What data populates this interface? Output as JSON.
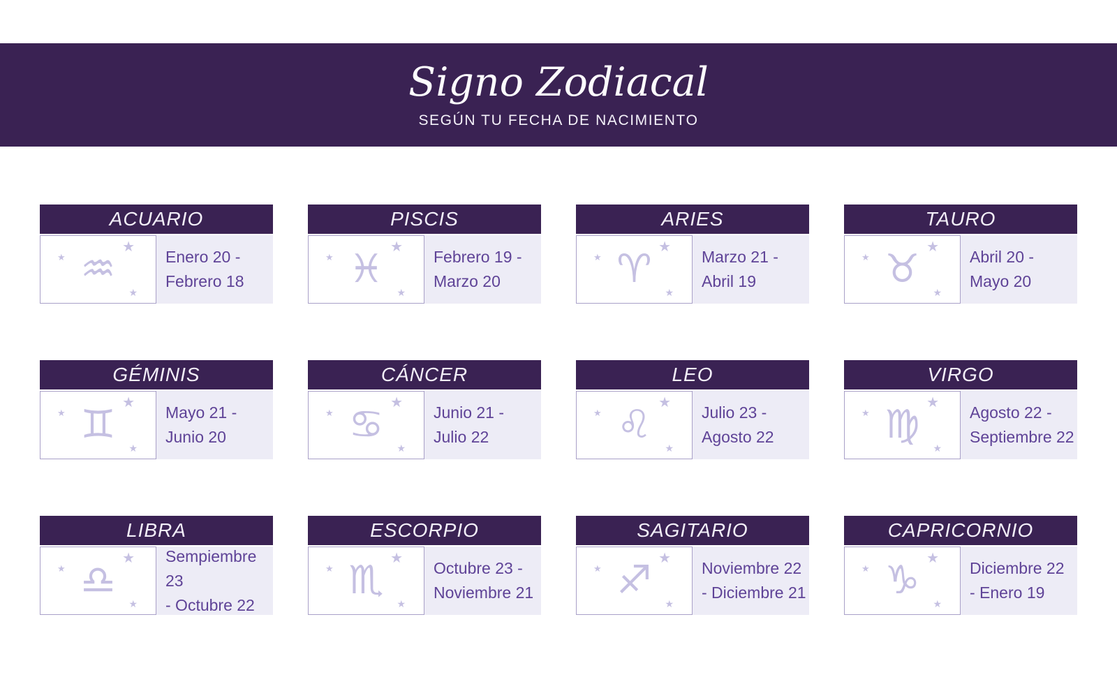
{
  "header": {
    "title": "Signo Zodiacal",
    "subtitle": "SEGÚN TU FECHA DE NACIMIENTO"
  },
  "decor": {
    "star_glyph": "★"
  },
  "colors": {
    "banner_purple": "#3a2253",
    "date_text_purple": "#5f4397",
    "panel_lavender": "#edecf6",
    "icon_lavender": "#c5c0e2"
  },
  "cards": [
    {
      "name": "ACUARIO",
      "icon": "aquarius-icon",
      "glyph": "♒",
      "date_line1": "Enero 20 -",
      "date_line2": "Febrero 18"
    },
    {
      "name": "PISCIS",
      "icon": "pisces-icon",
      "glyph": "♓",
      "date_line1": "Febrero 19 -",
      "date_line2": "Marzo 20"
    },
    {
      "name": "ARIES",
      "icon": "aries-icon",
      "glyph": "♈",
      "date_line1": "Marzo 21 -",
      "date_line2": "Abril 19"
    },
    {
      "name": "TAURO",
      "icon": "taurus-icon",
      "glyph": "♉",
      "date_line1": "Abril 20 -",
      "date_line2": "Mayo 20"
    },
    {
      "name": "GÉMINIS",
      "icon": "gemini-icon",
      "glyph": "♊",
      "date_line1": "Mayo 21 -",
      "date_line2": "Junio 20"
    },
    {
      "name": "CÁNCER",
      "icon": "cancer-icon",
      "glyph": "♋",
      "date_line1": "Junio 21 -",
      "date_line2": "Julio 22"
    },
    {
      "name": "LEO",
      "icon": "leo-icon",
      "glyph": "♌",
      "date_line1": "Julio 23 -",
      "date_line2": "Agosto 22"
    },
    {
      "name": "VIRGO",
      "icon": "virgo-icon",
      "glyph": "♍",
      "date_line1": "Agosto 22 -",
      "date_line2": "Septiembre 22"
    },
    {
      "name": "LIBRA",
      "icon": "libra-icon",
      "glyph": "♎",
      "date_line1": "Sempiembre 23",
      "date_line2": "- Octubre 22"
    },
    {
      "name": "ESCORPIO",
      "icon": "scorpio-icon",
      "glyph": "♏",
      "date_line1": "Octubre 23 -",
      "date_line2": "Noviembre 21"
    },
    {
      "name": "SAGITARIO",
      "icon": "sagittarius-icon",
      "glyph": "♐",
      "date_line1": "Noviembre 22",
      "date_line2": "- Diciembre 21"
    },
    {
      "name": "CAPRICORNIO",
      "icon": "capricorn-icon",
      "glyph": "♑",
      "date_line1": "Diciembre 22",
      "date_line2": "- Enero 19"
    }
  ]
}
